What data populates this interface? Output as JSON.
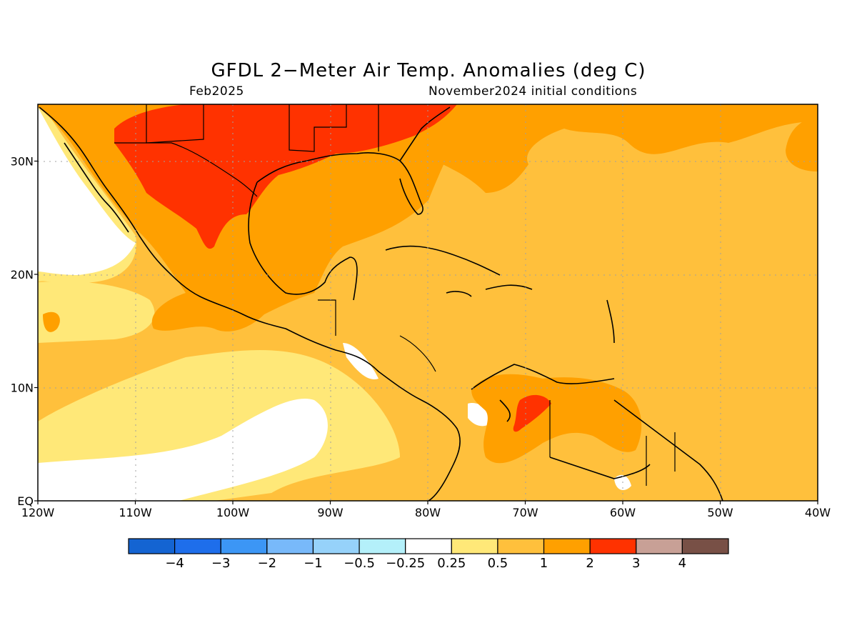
{
  "title": "GFDL 2−Meter Air Temp. Anomalies (deg C)",
  "valid_month": "Feb2025",
  "initial_conditions": "November2024 initial conditions",
  "map": {
    "lon_labels": [
      "120W",
      "110W",
      "100W",
      "90W",
      "80W",
      "70W",
      "60W",
      "50W",
      "40W"
    ],
    "lat_labels": [
      "EQ",
      "10N",
      "20N",
      "30N"
    ],
    "gridlines": true
  },
  "colorbar": {
    "bins": [
      {
        "color": "#1464d2"
      },
      {
        "color": "#1e6eeb"
      },
      {
        "color": "#3c96f5"
      },
      {
        "color": "#78b9fa"
      },
      {
        "color": "#96d2fa"
      },
      {
        "color": "#b4f0fa"
      },
      {
        "color": "#ffffff"
      },
      {
        "color": "#ffe878"
      },
      {
        "color": "#ffc03c"
      },
      {
        "color": "#ffa000"
      },
      {
        "color": "#ff3200"
      },
      {
        "color": "#c8a096"
      },
      {
        "color": "#785046"
      }
    ],
    "tick_labels": [
      "−4",
      "−3",
      "−2",
      "−1",
      "−0.5",
      "−0.25",
      "0.25",
      "0.5",
      "1",
      "2",
      "3",
      "4"
    ]
  }
}
